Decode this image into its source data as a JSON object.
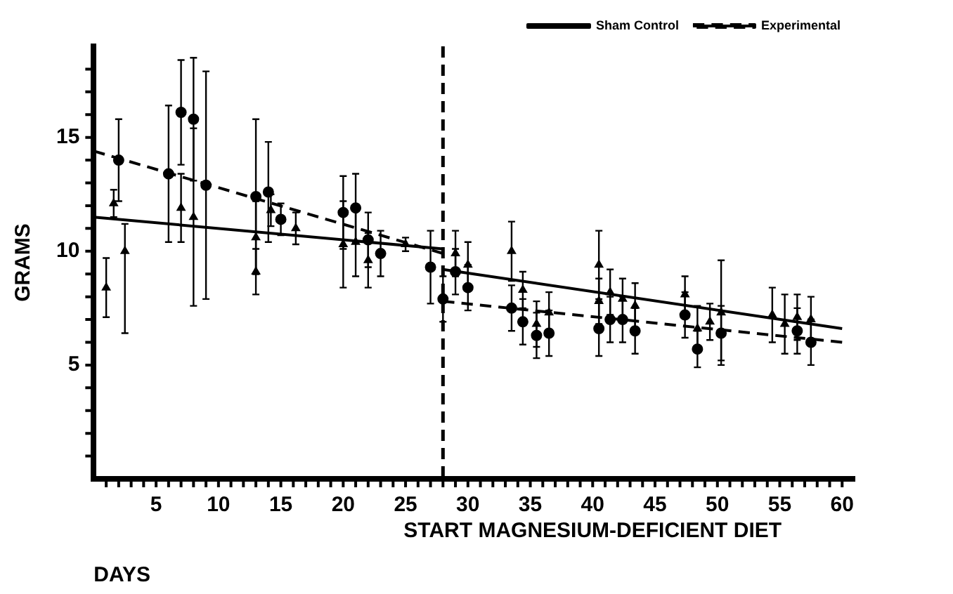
{
  "chart_data": {
    "type": "scatter",
    "xlabel": "DAYS",
    "ylabel": "GRAMS",
    "xlim": [
      0,
      61
    ],
    "ylim": [
      0,
      19
    ],
    "xticks": [
      {
        "value": 1,
        "label": null
      },
      {
        "value": 2,
        "label": null
      },
      {
        "value": 3,
        "label": null
      },
      {
        "value": 4,
        "label": null
      },
      5,
      {
        "value": 6,
        "label": null
      },
      {
        "value": 7,
        "label": null
      },
      {
        "value": 8,
        "label": null
      },
      {
        "value": 9,
        "label": null
      },
      10,
      {
        "value": 11,
        "label": null
      },
      {
        "value": 12,
        "label": null
      },
      {
        "value": 13,
        "label": null
      },
      {
        "value": 14,
        "label": null
      },
      15,
      {
        "value": 16,
        "label": null
      },
      {
        "value": 17,
        "label": null
      },
      {
        "value": 18,
        "label": null
      },
      {
        "value": 19,
        "label": null
      },
      20,
      {
        "value": 21,
        "label": null
      },
      {
        "value": 22,
        "label": null
      },
      {
        "value": 23,
        "label": null
      },
      {
        "value": 24,
        "label": null
      },
      25,
      {
        "value": 26,
        "label": null
      },
      {
        "value": 27,
        "label": null
      },
      {
        "value": 28,
        "label": null
      },
      {
        "value": 29,
        "label": null
      },
      30,
      {
        "value": 31,
        "label": null
      },
      {
        "value": 32,
        "label": null
      },
      {
        "value": 33,
        "label": null
      },
      {
        "value": 34,
        "label": null
      },
      35,
      {
        "value": 36,
        "label": null
      },
      {
        "value": 37,
        "label": null
      },
      {
        "value": 38,
        "label": null
      },
      {
        "value": 39,
        "label": null
      },
      40,
      {
        "value": 41,
        "label": null
      },
      {
        "value": 42,
        "label": null
      },
      {
        "value": 43,
        "label": null
      },
      {
        "value": 44,
        "label": null
      },
      45,
      {
        "value": 46,
        "label": null
      },
      {
        "value": 47,
        "label": null
      },
      {
        "value": 48,
        "label": null
      },
      {
        "value": 49,
        "label": null
      },
      50,
      {
        "value": 51,
        "label": null
      },
      {
        "value": 52,
        "label": null
      },
      {
        "value": 53,
        "label": null
      },
      {
        "value": 54,
        "label": null
      },
      55,
      {
        "value": 56,
        "label": null
      },
      {
        "value": 57,
        "label": null
      },
      {
        "value": 58,
        "label": null
      },
      {
        "value": 59,
        "label": null
      },
      60
    ],
    "yticks": [
      {
        "value": 1,
        "label": null
      },
      {
        "value": 2,
        "label": null
      },
      {
        "value": 3,
        "label": null
      },
      {
        "value": 4,
        "label": null
      },
      5,
      {
        "value": 6,
        "label": null
      },
      {
        "value": 7,
        "label": null
      },
      {
        "value": 8,
        "label": null
      },
      {
        "value": 9,
        "label": null
      },
      10,
      {
        "value": 11,
        "label": null
      },
      {
        "value": 12,
        "label": null
      },
      {
        "value": 13,
        "label": null
      },
      {
        "value": 14,
        "label": null
      },
      15,
      {
        "value": 16,
        "label": null
      },
      {
        "value": 17,
        "label": null
      },
      {
        "value": 18,
        "label": null
      }
    ],
    "grid": false,
    "legend": "top right",
    "ref_lines": [
      {
        "axis": "x",
        "value": 28,
        "label": "START MAGNESIUM-DEFICIENT DIET",
        "line_style": "dashed",
        "color": "#000000"
      }
    ],
    "series": [
      {
        "type": "scatter",
        "marker": "triangle",
        "color": "#000000",
        "x": [
          1,
          2.5,
          1.6,
          7,
          8,
          13,
          13,
          14.2,
          16.2,
          20,
          21,
          22,
          25,
          29,
          30,
          33.5,
          34.4,
          35.5,
          36.5,
          40.5,
          40.5,
          41.4,
          42.4,
          43.4,
          47.4,
          48.4,
          49.4,
          50.3,
          54.4,
          55.4,
          56.4,
          57.5
        ],
        "values": [
          8.4,
          10,
          12.1,
          11.9,
          11.5,
          10.6,
          9.1,
          11.8,
          11,
          10.3,
          10.4,
          9.6,
          10.3,
          9.9,
          9.4,
          10,
          8.3,
          6.8,
          7.3,
          9.4,
          7.8,
          8.2,
          7.9,
          7.6,
          8.1,
          6.6,
          6.9,
          7.3,
          7.2,
          6.8,
          7.1,
          7
        ],
        "errors": [
          1.3,
          [
            6.4,
            11.2
          ],
          0.6,
          1.5,
          3.9,
          1.6,
          1,
          0.7,
          0.7,
          1.9,
          1.5,
          1.2,
          0.3,
          1,
          1,
          1.3,
          0.8,
          1,
          0.9,
          1.5,
          1,
          1,
          0.9,
          1,
          0.8,
          1,
          0.8,
          2.3,
          1.2,
          1.3,
          1,
          1
        ]
      },
      {
        "type": "scatter",
        "marker": "circle",
        "color": "#000000",
        "x": [
          2,
          6,
          7,
          8,
          9,
          13,
          14,
          15,
          20,
          21,
          22,
          23,
          27,
          28,
          29,
          30,
          33.5,
          34.4,
          35.5,
          36.5,
          40.5,
          41.4,
          42.4,
          43.4,
          47.4,
          48.4,
          50.3,
          56.4,
          57.5
        ],
        "values": [
          14,
          13.4,
          16.1,
          15.8,
          12.9,
          12.4,
          12.6,
          11.4,
          11.7,
          11.9,
          10.5,
          9.9,
          9.3,
          7.9,
          9.1,
          8.4,
          7.5,
          6.9,
          6.3,
          6.4,
          6.6,
          7,
          7,
          6.5,
          7.2,
          5.7,
          6.4,
          6.5,
          6
        ],
        "errors": [
          1.8,
          3,
          2.3,
          2.7,
          5,
          3.4,
          2.2,
          0.7,
          1.6,
          1.5,
          1.2,
          1,
          1.6,
          1,
          1,
          1,
          1,
          1,
          1,
          1,
          1.2,
          1,
          1,
          1,
          1,
          0.8,
          1.2,
          1,
          1
        ]
      },
      {
        "type": "line",
        "name": "Sham Control",
        "color": "#000000",
        "line_style": "solid",
        "x": [
          0,
          28
        ],
        "values": [
          11.5,
          10.1
        ]
      },
      {
        "type": "line",
        "color": "#000000",
        "line_style": "solid",
        "x": [
          28,
          60
        ],
        "values": [
          9.2,
          6.6
        ]
      },
      {
        "type": "line",
        "name": "Experimental",
        "color": "#000000",
        "line_style": "dashed",
        "x": [
          0,
          28
        ],
        "values": [
          14.4,
          9.9
        ]
      },
      {
        "type": "line",
        "color": "#000000",
        "line_style": "dashed",
        "x": [
          28,
          60
        ],
        "values": [
          7.8,
          6
        ]
      }
    ]
  }
}
